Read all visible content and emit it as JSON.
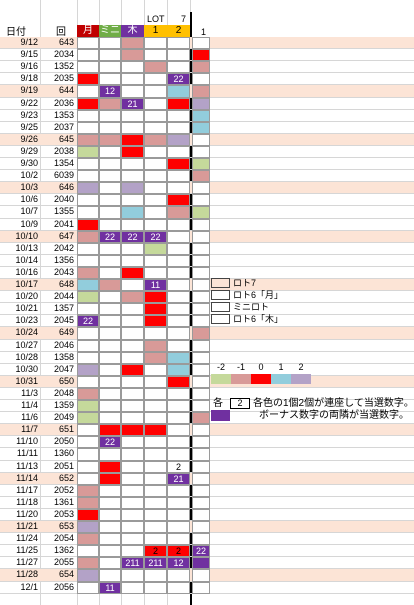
{
  "headers": {
    "date": "日付",
    "round": "回",
    "mon": "月",
    "mini": "ミニ",
    "thu": "木",
    "lot_label": "LOT",
    "lot_num": "7",
    "lot1": "1",
    "lot2": "2",
    "extra": "1"
  },
  "colors": {
    "white": "#ffffff",
    "red": "#ff0000",
    "pink": "#d89a98",
    "green": "#c5d99b",
    "blue": "#92cddc",
    "purple": "#b3a2c7",
    "dpurple": "#7030a0",
    "peach": "#fce4d6",
    "yellow": "#ffc000"
  },
  "rows": [
    {
      "date": "9/12",
      "round": "643",
      "band": true,
      "cells": [
        "W",
        "W",
        "P",
        "W",
        "W",
        "W"
      ],
      "labels": [
        "",
        "",
        "",
        "",
        "",
        ""
      ]
    },
    {
      "date": "9/15",
      "round": "2034",
      "band": false,
      "cells": [
        "W",
        "W",
        "P",
        "W",
        "W",
        "R"
      ],
      "labels": [
        "",
        "",
        "",
        "",
        "",
        ""
      ]
    },
    {
      "date": "9/16",
      "round": "1352",
      "band": false,
      "cells": [
        "W",
        "W",
        "W",
        "P",
        "W",
        "P"
      ],
      "labels": [
        "",
        "",
        "",
        "",
        "",
        ""
      ]
    },
    {
      "date": "9/18",
      "round": "2035",
      "band": false,
      "cells": [
        "R",
        "W",
        "W",
        "W",
        "D",
        "W"
      ],
      "labels": [
        "",
        "",
        "",
        "",
        "22",
        ""
      ]
    },
    {
      "date": "9/19",
      "round": "644",
      "band": true,
      "cells": [
        "W",
        "D",
        "W",
        "W",
        "B",
        "P"
      ],
      "labels": [
        "",
        "12",
        "",
        "",
        "",
        ""
      ]
    },
    {
      "date": "9/22",
      "round": "2036",
      "band": false,
      "cells": [
        "R",
        "P",
        "D",
        "W",
        "R",
        "U"
      ],
      "labels": [
        "",
        "",
        "21",
        "",
        "",
        ""
      ]
    },
    {
      "date": "9/23",
      "round": "1353",
      "band": false,
      "cells": [
        "W",
        "W",
        "W",
        "W",
        "W",
        "B"
      ],
      "labels": [
        "",
        "",
        "",
        "",
        "",
        ""
      ]
    },
    {
      "date": "9/25",
      "round": "2037",
      "band": false,
      "cells": [
        "W",
        "W",
        "W",
        "W",
        "W",
        "B"
      ],
      "labels": [
        "",
        "",
        "",
        "",
        "",
        ""
      ]
    },
    {
      "date": "9/26",
      "round": "645",
      "band": true,
      "cells": [
        "P",
        "P",
        "R",
        "P",
        "U",
        "W"
      ],
      "labels": [
        "",
        "",
        "",
        "",
        "",
        ""
      ]
    },
    {
      "date": "9/29",
      "round": "2038",
      "band": false,
      "cells": [
        "G",
        "W",
        "R",
        "W",
        "W",
        "W"
      ],
      "labels": [
        "",
        "",
        "",
        "",
        "",
        ""
      ]
    },
    {
      "date": "9/30",
      "round": "1354",
      "band": false,
      "cells": [
        "W",
        "W",
        "W",
        "W",
        "R",
        "G"
      ],
      "labels": [
        "",
        "",
        "",
        "",
        "",
        ""
      ]
    },
    {
      "date": "10/2",
      "round": "6039",
      "band": false,
      "cells": [
        "W",
        "W",
        "W",
        "W",
        "W",
        "P"
      ],
      "labels": [
        "",
        "",
        "",
        "",
        "",
        ""
      ]
    },
    {
      "date": "10/3",
      "round": "646",
      "band": true,
      "cells": [
        "U",
        "W",
        "U",
        "W",
        "W",
        "W"
      ],
      "labels": [
        "",
        "",
        "",
        "",
        "",
        ""
      ]
    },
    {
      "date": "10/6",
      "round": "2040",
      "band": false,
      "cells": [
        "W",
        "W",
        "W",
        "W",
        "R",
        "W"
      ],
      "labels": [
        "",
        "",
        "",
        "",
        "",
        ""
      ]
    },
    {
      "date": "10/7",
      "round": "1355",
      "band": false,
      "cells": [
        "W",
        "W",
        "B",
        "W",
        "P",
        "G"
      ],
      "labels": [
        "",
        "",
        "",
        "",
        "",
        ""
      ]
    },
    {
      "date": "10/9",
      "round": "2041",
      "band": false,
      "cells": [
        "R",
        "W",
        "W",
        "W",
        "W",
        "W"
      ],
      "labels": [
        "",
        "",
        "",
        "",
        "",
        ""
      ]
    },
    {
      "date": "10/10",
      "round": "647",
      "band": true,
      "cells": [
        "P",
        "D",
        "D",
        "D",
        "W",
        "W"
      ],
      "labels": [
        "",
        "22",
        "22",
        "22",
        "",
        ""
      ]
    },
    {
      "date": "10/13",
      "round": "2042",
      "band": false,
      "cells": [
        "W",
        "W",
        "W",
        "G",
        "W",
        "W"
      ],
      "labels": [
        "",
        "",
        "",
        "",
        "",
        ""
      ]
    },
    {
      "date": "10/14",
      "round": "1356",
      "band": false,
      "cells": [
        "W",
        "W",
        "W",
        "W",
        "W",
        "W"
      ],
      "labels": [
        "",
        "",
        "",
        "",
        "",
        ""
      ]
    },
    {
      "date": "10/16",
      "round": "2043",
      "band": false,
      "cells": [
        "P",
        "W",
        "R",
        "W",
        "W",
        "W"
      ],
      "labels": [
        "",
        "",
        "",
        "",
        "",
        ""
      ]
    },
    {
      "date": "10/17",
      "round": "648",
      "band": true,
      "cells": [
        "B",
        "P",
        "W",
        "D",
        "W",
        "W"
      ],
      "labels": [
        "",
        "",
        "",
        "11",
        "",
        ""
      ]
    },
    {
      "date": "10/20",
      "round": "2044",
      "band": false,
      "cells": [
        "G",
        "W",
        "P",
        "R",
        "W",
        "W"
      ],
      "labels": [
        "",
        "",
        "",
        "",
        "",
        ""
      ]
    },
    {
      "date": "10/21",
      "round": "1357",
      "band": false,
      "cells": [
        "W",
        "W",
        "W",
        "R",
        "W",
        "W"
      ],
      "labels": [
        "",
        "",
        "",
        "",
        "",
        ""
      ]
    },
    {
      "date": "10/23",
      "round": "2045",
      "band": false,
      "cells": [
        "D",
        "W",
        "W",
        "R",
        "W",
        "W"
      ],
      "labels": [
        "22",
        "",
        "",
        "",
        "",
        ""
      ]
    },
    {
      "date": "10/24",
      "round": "649",
      "band": true,
      "cells": [
        "W",
        "W",
        "W",
        "W",
        "W",
        "P"
      ],
      "labels": [
        "",
        "",
        "",
        "",
        "",
        ""
      ]
    },
    {
      "date": "10/27",
      "round": "2046",
      "band": false,
      "cells": [
        "W",
        "W",
        "W",
        "P",
        "W",
        "W"
      ],
      "labels": [
        "",
        "",
        "",
        "",
        "",
        ""
      ]
    },
    {
      "date": "10/28",
      "round": "1358",
      "band": false,
      "cells": [
        "W",
        "W",
        "W",
        "P",
        "B",
        "W"
      ],
      "labels": [
        "",
        "",
        "",
        "",
        "",
        ""
      ]
    },
    {
      "date": "10/30",
      "round": "2047",
      "band": false,
      "cells": [
        "U",
        "W",
        "R",
        "W",
        "B",
        "W"
      ],
      "labels": [
        "",
        "",
        "",
        "",
        "",
        ""
      ]
    },
    {
      "date": "10/31",
      "round": "650",
      "band": true,
      "cells": [
        "W",
        "W",
        "W",
        "W",
        "R",
        "W"
      ],
      "labels": [
        "",
        "",
        "",
        "",
        "",
        ""
      ]
    },
    {
      "date": "11/3",
      "round": "2048",
      "band": false,
      "cells": [
        "P",
        "W",
        "W",
        "W",
        "W",
        "W"
      ],
      "labels": [
        "",
        "",
        "",
        "",
        "",
        ""
      ]
    },
    {
      "date": "11/4",
      "round": "1359",
      "band": false,
      "cells": [
        "G",
        "W",
        "W",
        "W",
        "W",
        "W"
      ],
      "labels": [
        "",
        "",
        "",
        "",
        "",
        ""
      ]
    },
    {
      "date": "11/6",
      "round": "2049",
      "band": false,
      "cells": [
        "G",
        "W",
        "W",
        "W",
        "W",
        "P"
      ],
      "labels": [
        "",
        "",
        "",
        "",
        "",
        ""
      ]
    },
    {
      "date": "11/7",
      "round": "651",
      "band": true,
      "cells": [
        "W",
        "R",
        "R",
        "R",
        "W",
        "W"
      ],
      "labels": [
        "",
        "",
        "",
        "",
        "",
        ""
      ]
    },
    {
      "date": "11/10",
      "round": "2050",
      "band": false,
      "cells": [
        "W",
        "D",
        "W",
        "W",
        "W",
        "W"
      ],
      "labels": [
        "",
        "22",
        "",
        "",
        "",
        ""
      ]
    },
    {
      "date": "11/11",
      "round": "1360",
      "band": false,
      "cells": [
        "W",
        "W",
        "W",
        "W",
        "W",
        "W"
      ],
      "labels": [
        "",
        "",
        "",
        "",
        "",
        ""
      ]
    },
    {
      "date": "11/13",
      "round": "2051",
      "band": false,
      "cells": [
        "W",
        "R",
        "W",
        "W",
        "W",
        "W"
      ],
      "labels": [
        "",
        "",
        "",
        "",
        "2",
        ""
      ]
    },
    {
      "date": "11/14",
      "round": "652",
      "band": true,
      "cells": [
        "W",
        "R",
        "W",
        "W",
        "D",
        "W"
      ],
      "labels": [
        "",
        "",
        "",
        "",
        "21",
        ""
      ]
    },
    {
      "date": "11/17",
      "round": "2052",
      "band": false,
      "cells": [
        "P",
        "W",
        "W",
        "W",
        "W",
        "W"
      ],
      "labels": [
        "",
        "",
        "",
        "",
        "",
        ""
      ]
    },
    {
      "date": "11/18",
      "round": "1361",
      "band": false,
      "cells": [
        "P",
        "W",
        "W",
        "W",
        "W",
        "W"
      ],
      "labels": [
        "",
        "",
        "",
        "",
        "",
        ""
      ]
    },
    {
      "date": "11/20",
      "round": "2053",
      "band": false,
      "cells": [
        "R",
        "W",
        "W",
        "W",
        "W",
        "W"
      ],
      "labels": [
        "",
        "",
        "",
        "",
        "",
        ""
      ]
    },
    {
      "date": "11/21",
      "round": "653",
      "band": true,
      "cells": [
        "U",
        "W",
        "W",
        "W",
        "W",
        "W"
      ],
      "labels": [
        "",
        "",
        "",
        "",
        "",
        ""
      ]
    },
    {
      "date": "11/24",
      "round": "2054",
      "band": false,
      "cells": [
        "P",
        "W",
        "W",
        "W",
        "W",
        "W"
      ],
      "labels": [
        "",
        "",
        "",
        "",
        "",
        ""
      ]
    },
    {
      "date": "11/25",
      "round": "1362",
      "band": false,
      "cells": [
        "W",
        "W",
        "W",
        "R",
        "R",
        "D"
      ],
      "labels": [
        "",
        "",
        "",
        "2",
        "2",
        "22"
      ]
    },
    {
      "date": "11/27",
      "round": "2055",
      "band": false,
      "cells": [
        "P",
        "W",
        "D",
        "D",
        "D",
        "D"
      ],
      "labels": [
        "",
        "",
        "211",
        "211",
        "12",
        ""
      ]
    },
    {
      "date": "11/28",
      "round": "654",
      "band": true,
      "cells": [
        "U",
        "W",
        "W",
        "W",
        "W",
        "W"
      ],
      "labels": [
        "",
        "",
        "",
        "",
        "",
        ""
      ]
    },
    {
      "date": "12/1",
      "round": "2056",
      "band": false,
      "cells": [
        "W",
        "D",
        "W",
        "W",
        "W",
        "W"
      ],
      "labels": [
        "",
        "11",
        "",
        "",
        "",
        ""
      ]
    }
  ],
  "legend": {
    "items": [
      {
        "swatch": "peach",
        "label": "ロト7"
      },
      {
        "swatch": "white",
        "label": "ロト6「月」"
      },
      {
        "swatch": "white",
        "label": "ミニロト"
      },
      {
        "swatch": "white",
        "label": "ロト6「木」"
      }
    ]
  },
  "scale": {
    "labels": [
      "-2",
      "-1",
      "0",
      "1",
      "2"
    ],
    "swatches": [
      "green",
      "pink",
      "red",
      "blue",
      "purple"
    ]
  },
  "notes": {
    "kaku": "各",
    "boxnum": "2",
    "line1": "各色の1個2個が連座して当選数字。",
    "line2": "ボーナス数字の両隣が当選数字。"
  }
}
